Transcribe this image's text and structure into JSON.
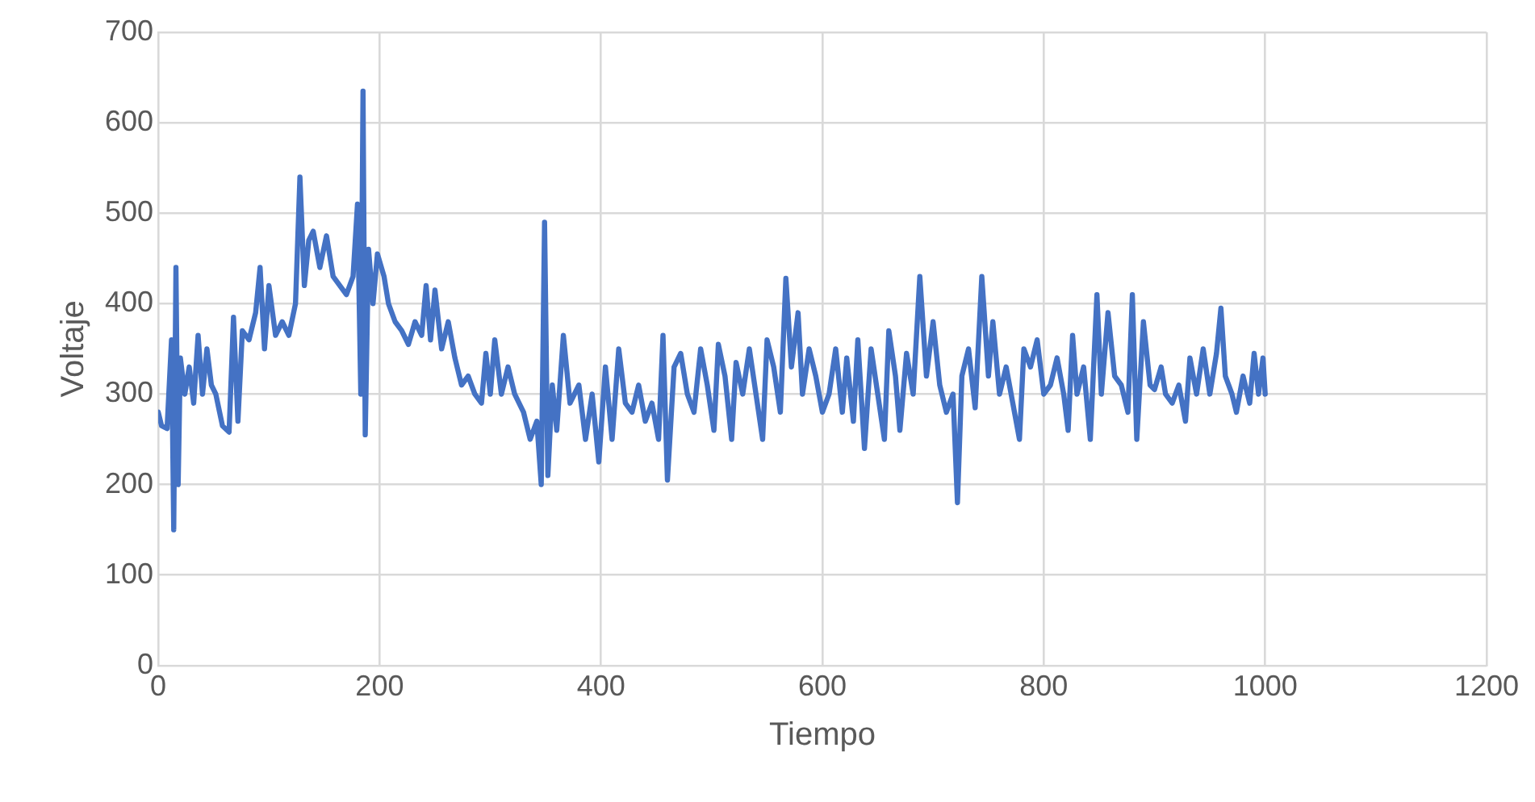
{
  "chart_data": {
    "type": "line",
    "xlabel": "Tiempo",
    "ylabel": "Voltaje",
    "xlim": [
      0,
      1200
    ],
    "xticks": [
      0,
      200,
      400,
      600,
      800,
      1000,
      1200
    ],
    "ylim": [
      0,
      700
    ],
    "yticks": [
      0,
      100,
      200,
      300,
      400,
      500,
      600,
      700
    ],
    "grid": true,
    "legend": false,
    "marker": "none",
    "line_style": "solid",
    "series": [
      {
        "color": "#4472c4",
        "x": [
          0,
          3,
          8,
          12,
          14,
          16,
          18,
          20,
          24,
          28,
          32,
          36,
          40,
          44,
          48,
          52,
          58,
          64,
          68,
          72,
          76,
          82,
          88,
          92,
          96,
          100,
          106,
          112,
          118,
          124,
          128,
          132,
          136,
          140,
          146,
          152,
          158,
          164,
          170,
          176,
          180,
          183,
          185,
          187,
          190,
          194,
          198,
          204,
          208,
          214,
          220,
          226,
          232,
          238,
          242,
          246,
          250,
          256,
          262,
          268,
          274,
          280,
          286,
          292,
          296,
          300,
          304,
          310,
          316,
          322,
          330,
          336,
          342,
          346,
          349,
          352,
          356,
          360,
          366,
          372,
          380,
          386,
          392,
          398,
          404,
          410,
          416,
          422,
          428,
          434,
          440,
          446,
          452,
          456,
          460,
          466,
          472,
          478,
          484,
          490,
          496,
          502,
          506,
          512,
          518,
          522,
          528,
          534,
          540,
          546,
          550,
          556,
          562,
          567,
          572,
          578,
          582,
          588,
          594,
          600,
          606,
          612,
          618,
          622,
          628,
          632,
          638,
          644,
          650,
          656,
          660,
          666,
          670,
          676,
          682,
          688,
          694,
          700,
          706,
          712,
          718,
          722,
          726,
          732,
          738,
          744,
          750,
          754,
          760,
          766,
          772,
          778,
          782,
          788,
          794,
          800,
          806,
          812,
          818,
          822,
          826,
          830,
          836,
          842,
          848,
          852,
          858,
          864,
          870,
          876,
          880,
          884,
          890,
          896,
          900,
          906,
          910,
          916,
          922,
          928,
          932,
          938,
          944,
          950,
          956,
          960,
          964,
          970,
          974,
          980,
          986,
          990,
          994,
          998,
          1000
        ],
        "values": [
          280,
          265,
          262,
          360,
          150,
          440,
          200,
          340,
          300,
          330,
          290,
          365,
          300,
          350,
          310,
          300,
          265,
          258,
          385,
          270,
          370,
          360,
          390,
          440,
          350,
          420,
          365,
          380,
          365,
          400,
          540,
          420,
          470,
          480,
          440,
          475,
          430,
          420,
          410,
          430,
          510,
          300,
          635,
          255,
          460,
          400,
          455,
          430,
          400,
          380,
          370,
          355,
          380,
          365,
          420,
          360,
          415,
          350,
          380,
          340,
          310,
          320,
          300,
          290,
          345,
          300,
          360,
          300,
          330,
          300,
          280,
          250,
          270,
          200,
          490,
          210,
          310,
          260,
          365,
          290,
          310,
          250,
          300,
          225,
          330,
          250,
          350,
          290,
          280,
          310,
          270,
          290,
          250,
          365,
          205,
          330,
          345,
          300,
          280,
          350,
          310,
          260,
          355,
          320,
          250,
          335,
          300,
          350,
          300,
          250,
          360,
          330,
          280,
          428,
          330,
          390,
          300,
          350,
          320,
          280,
          300,
          350,
          280,
          340,
          270,
          360,
          240,
          350,
          300,
          250,
          370,
          320,
          260,
          345,
          300,
          430,
          320,
          380,
          310,
          280,
          300,
          180,
          320,
          350,
          285,
          430,
          320,
          380,
          300,
          330,
          290,
          250,
          350,
          330,
          360,
          300,
          310,
          340,
          300,
          260,
          365,
          300,
          330,
          250,
          410,
          300,
          390,
          320,
          310,
          280,
          410,
          250,
          380,
          310,
          305,
          330,
          300,
          290,
          310,
          270,
          340,
          300,
          350,
          300,
          345,
          395,
          320,
          300,
          280,
          320,
          290,
          345,
          300,
          340,
          300
        ]
      }
    ]
  }
}
